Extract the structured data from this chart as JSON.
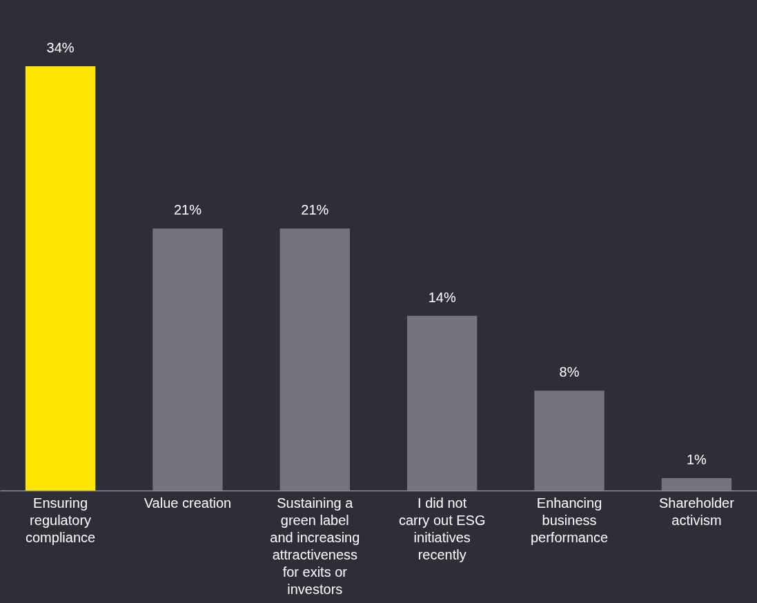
{
  "chart_data": {
    "type": "bar",
    "categories": [
      "Ensuring regulatory compliance",
      "Value creation",
      "Sustaining a green label and increasing attractiveness for exits or investors",
      "I did not carry out ESG initiatives recently",
      "Enhancing business performance",
      "Shareholder activism"
    ],
    "values": [
      34,
      21,
      21,
      14,
      8,
      1
    ],
    "colors": [
      "#ffe600",
      "#747480",
      "#747480",
      "#747480",
      "#747480",
      "#747480"
    ],
    "value_labels": [
      "34%",
      "21%",
      "21%",
      "14%",
      "8%",
      "1%"
    ]
  }
}
